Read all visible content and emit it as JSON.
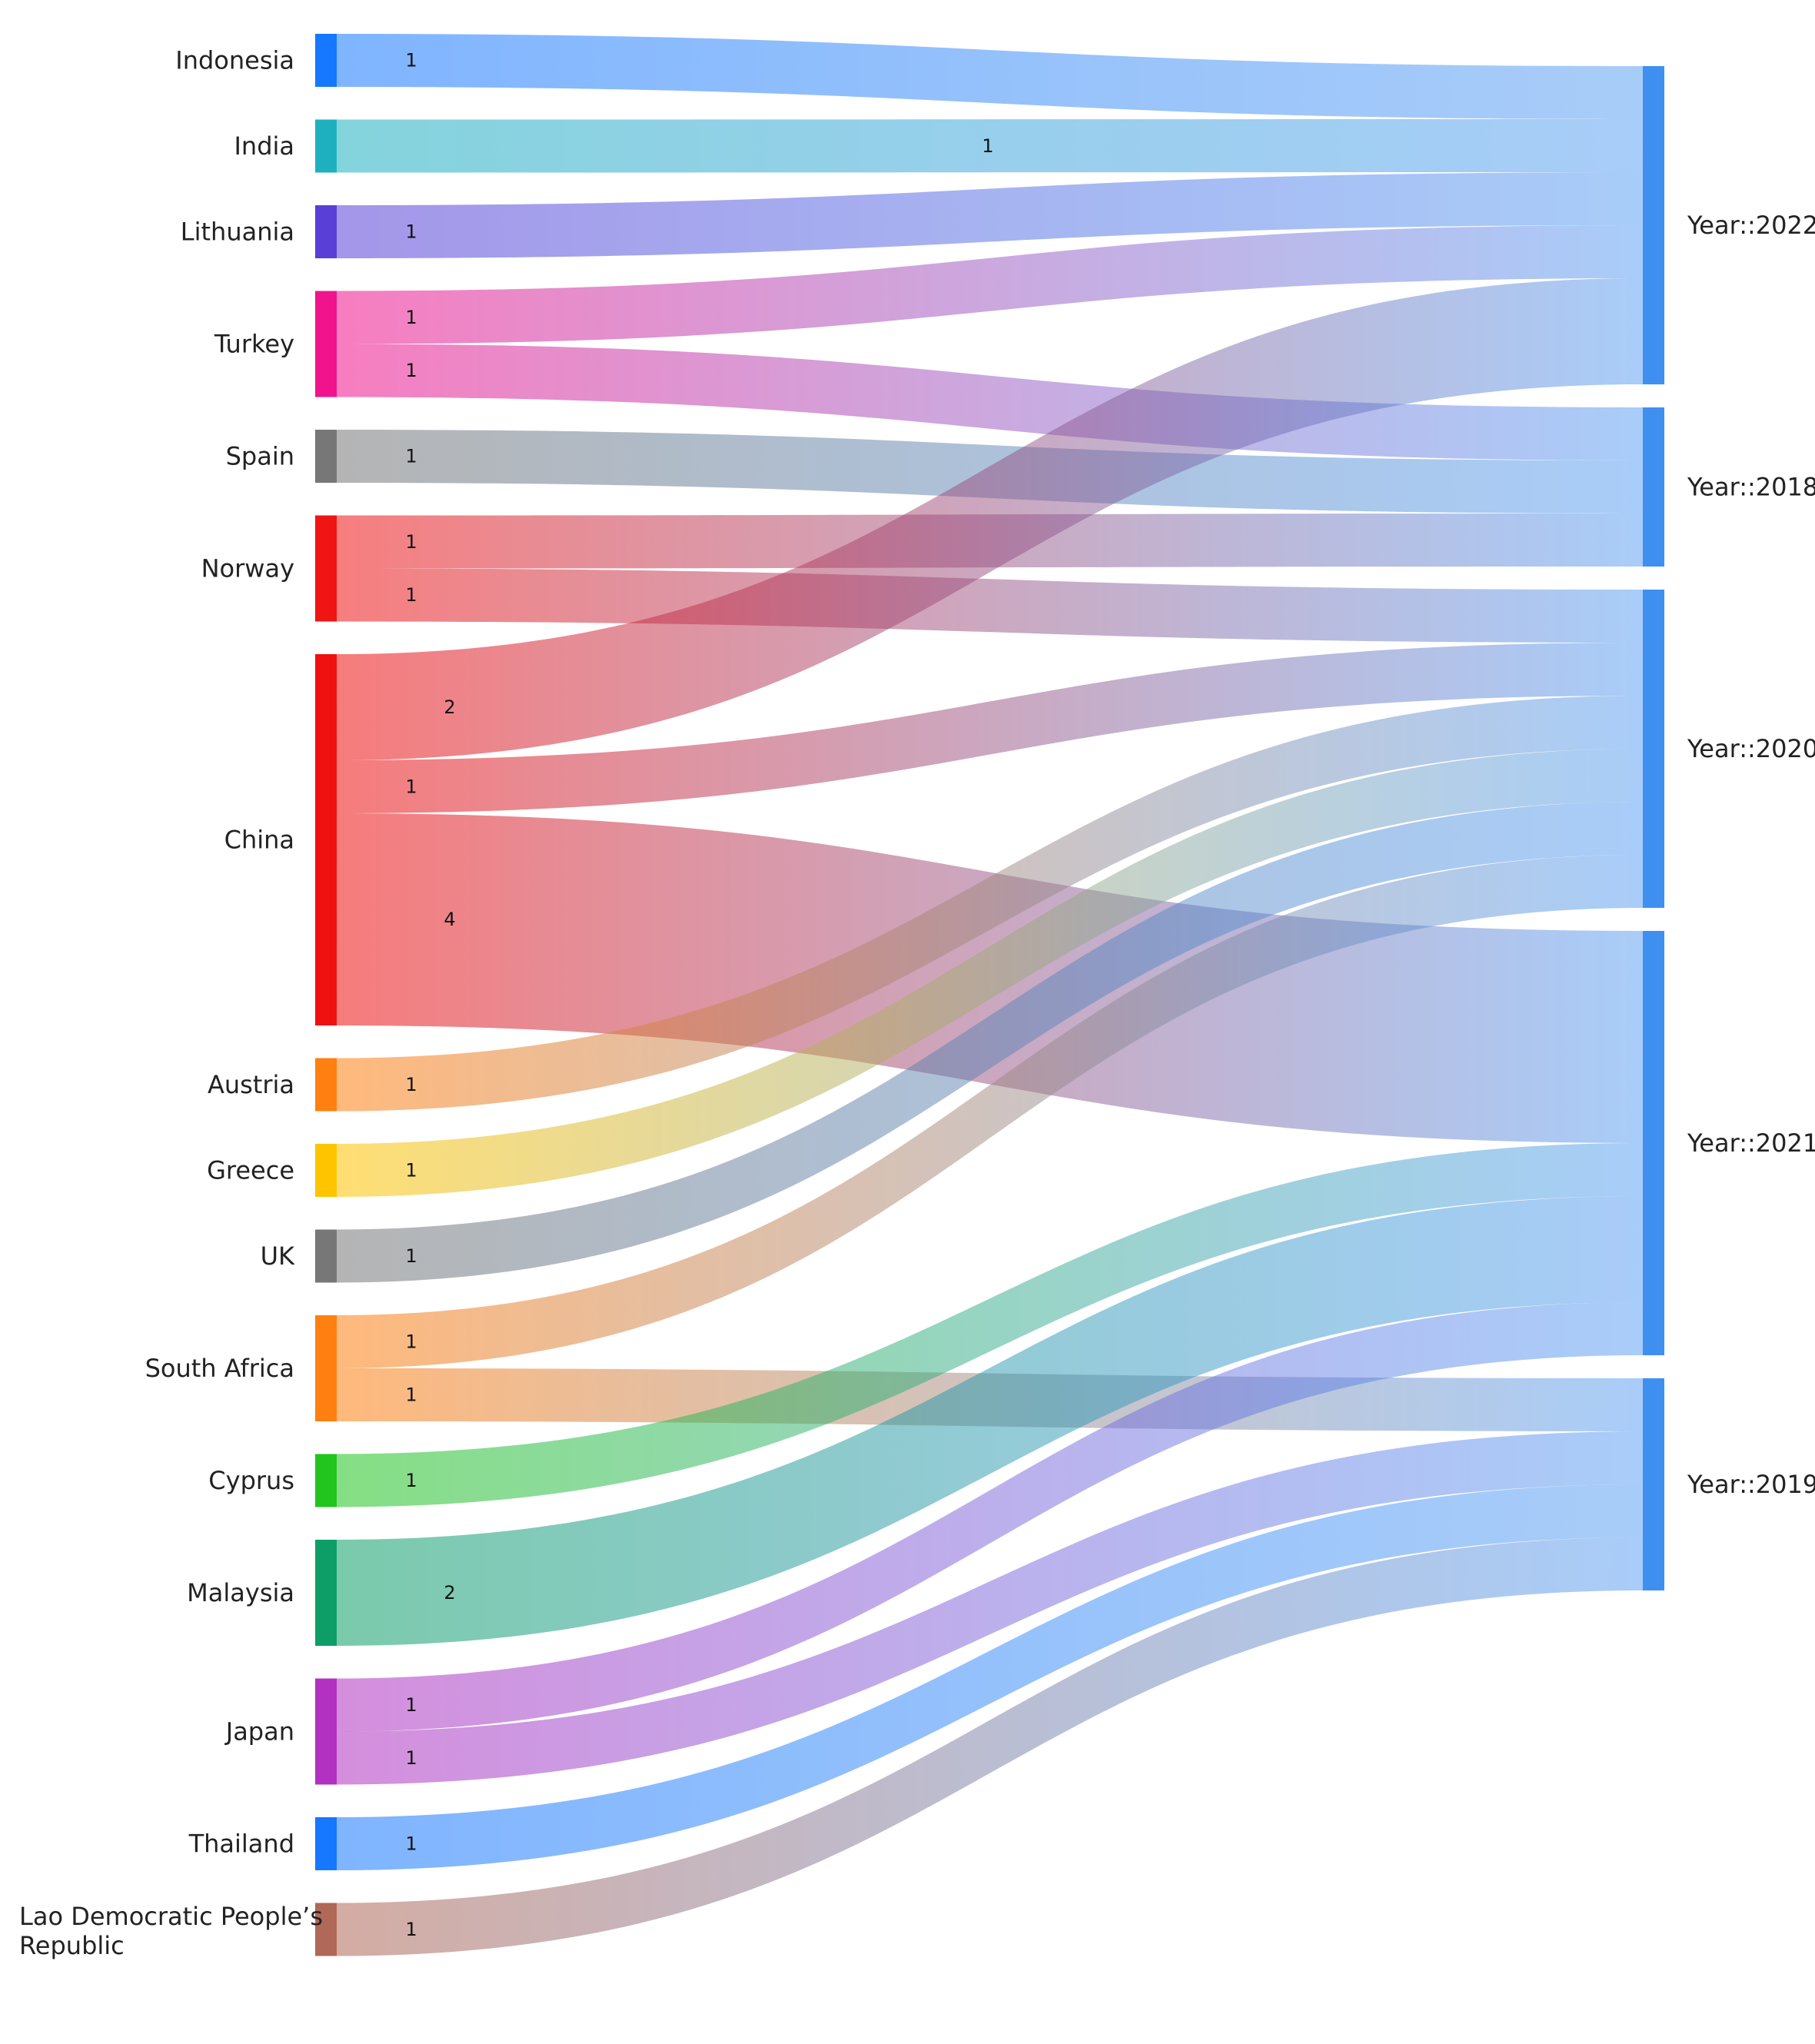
{
  "chart_data": {
    "type": "sankey",
    "sources": [
      {
        "name": "Indonesia",
        "color": "#1677ff"
      },
      {
        "name": "India",
        "color": "#1fb0c0"
      },
      {
        "name": "Lithuania",
        "color": "#5a3fd6"
      },
      {
        "name": "Turkey",
        "color": "#f0138c"
      },
      {
        "name": "Spain",
        "color": "#777777"
      },
      {
        "name": "Norway",
        "color": "#f01414"
      },
      {
        "name": "China",
        "color": "#ef1010"
      },
      {
        "name": "Austria",
        "color": "#ff7f10"
      },
      {
        "name": "Greece",
        "color": "#ffc400"
      },
      {
        "name": "UK",
        "color": "#777777"
      },
      {
        "name": "South Africa",
        "color": "#ff7f10"
      },
      {
        "name": "Cyprus",
        "color": "#22c41e"
      },
      {
        "name": "Malaysia",
        "color": "#0d9e67"
      },
      {
        "name": "Japan",
        "color": "#b331c0"
      },
      {
        "name": "Thailand",
        "color": "#1677ff"
      },
      {
        "name": "Lao Democratic People’s Republic",
        "color": "#b06858"
      }
    ],
    "targets": [
      {
        "name": "Year::2022",
        "color": "#3f8ff0"
      },
      {
        "name": "Year::2018",
        "color": "#3f8ff0"
      },
      {
        "name": "Year::2020",
        "color": "#3f8ff0"
      },
      {
        "name": "Year::2021",
        "color": "#3f8ff0"
      },
      {
        "name": "Year::2019",
        "color": "#3f8ff0"
      }
    ],
    "links": [
      {
        "source": "Indonesia",
        "target": "Year::2022",
        "value": 1
      },
      {
        "source": "India",
        "target": "Year::2022",
        "value": 1
      },
      {
        "source": "Lithuania",
        "target": "Year::2022",
        "value": 1
      },
      {
        "source": "Turkey",
        "target": "Year::2022",
        "value": 1
      },
      {
        "source": "Turkey",
        "target": "Year::2018",
        "value": 1
      },
      {
        "source": "Spain",
        "target": "Year::2018",
        "value": 1
      },
      {
        "source": "Norway",
        "target": "Year::2018",
        "value": 1
      },
      {
        "source": "Norway",
        "target": "Year::2020",
        "value": 1
      },
      {
        "source": "China",
        "target": "Year::2022",
        "value": 2
      },
      {
        "source": "China",
        "target": "Year::2020",
        "value": 1
      },
      {
        "source": "China",
        "target": "Year::2021",
        "value": 4
      },
      {
        "source": "Austria",
        "target": "Year::2020",
        "value": 1
      },
      {
        "source": "Greece",
        "target": "Year::2020",
        "value": 1
      },
      {
        "source": "UK",
        "target": "Year::2020",
        "value": 1
      },
      {
        "source": "South Africa",
        "target": "Year::2020",
        "value": 1
      },
      {
        "source": "South Africa",
        "target": "Year::2019",
        "value": 1
      },
      {
        "source": "Cyprus",
        "target": "Year::2021",
        "value": 1
      },
      {
        "source": "Malaysia",
        "target": "Year::2021",
        "value": 2
      },
      {
        "source": "Japan",
        "target": "Year::2021",
        "value": 1
      },
      {
        "source": "Japan",
        "target": "Year::2019",
        "value": 1
      },
      {
        "source": "Thailand",
        "target": "Year::2019",
        "value": 1
      },
      {
        "source": "Lao Democratic People’s Republic",
        "target": "Year::2019",
        "value": 1
      }
    ]
  }
}
